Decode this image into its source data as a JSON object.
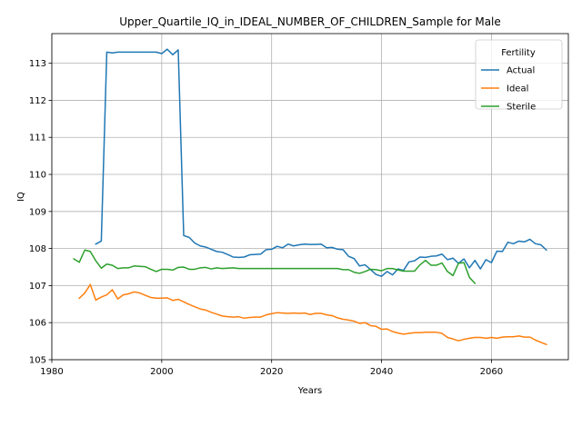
{
  "chart_data": {
    "type": "line",
    "title": "Upper_Quartile_IQ_in_IDEAL_NUMBER_OF_CHILDREN_Sample for Male",
    "xlabel": "Years",
    "ylabel": "IQ",
    "xlim": [
      1980,
      2074
    ],
    "ylim": [
      105,
      113.8
    ],
    "xticks": [
      1980,
      2000,
      2020,
      2040,
      2060
    ],
    "yticks": [
      105,
      106,
      107,
      108,
      109,
      110,
      111,
      112,
      113
    ],
    "grid": true,
    "legend": {
      "title": "Fertility",
      "placement": "top-right"
    },
    "series": [
      {
        "name": "Actual",
        "color": "#1f77b4",
        "x": [
          1988,
          1989,
          1990,
          1991,
          1992,
          1993,
          1994,
          1995,
          1996,
          1997,
          1998,
          1999,
          2000,
          2001,
          2002,
          2003,
          2004,
          2005,
          2006,
          2007,
          2008,
          2009,
          2010,
          2011,
          2012,
          2013,
          2014,
          2015,
          2016,
          2017,
          2018,
          2019,
          2020,
          2021,
          2022,
          2023,
          2024,
          2025,
          2026,
          2027,
          2028,
          2029,
          2030,
          2031,
          2032,
          2033,
          2034,
          2035,
          2036,
          2037,
          2038,
          2039,
          2040,
          2041,
          2042,
          2043,
          2044,
          2045,
          2046,
          2047,
          2048,
          2049,
          2050,
          2051,
          2052,
          2053,
          2054,
          2055,
          2056,
          2057,
          2058,
          2059,
          2060,
          2061,
          2062,
          2063,
          2064,
          2065,
          2066,
          2067,
          2068,
          2069,
          2070
        ],
        "y": [
          108.12,
          108.2,
          113.3,
          113.28,
          113.3,
          113.3,
          113.3,
          113.3,
          113.3,
          113.3,
          113.3,
          113.3,
          113.26,
          113.38,
          113.23,
          113.36,
          108.35,
          108.3,
          108.15,
          108.07,
          108.04,
          107.98,
          107.92,
          107.9,
          107.84,
          107.77,
          107.76,
          107.77,
          107.83,
          107.84,
          107.85,
          107.97,
          107.98,
          108.06,
          108.02,
          108.12,
          108.07,
          108.1,
          108.12,
          108.11,
          108.11,
          108.12,
          108.02,
          108.03,
          107.98,
          107.97,
          107.79,
          107.73,
          107.53,
          107.56,
          107.43,
          107.3,
          107.25,
          107.38,
          107.29,
          107.45,
          107.41,
          107.64,
          107.67,
          107.77,
          107.76,
          107.79,
          107.8,
          107.85,
          107.7,
          107.74,
          107.6,
          107.72,
          107.48,
          107.68,
          107.45,
          107.7,
          107.62,
          107.93,
          107.92,
          108.17,
          108.13,
          108.2,
          108.18,
          108.25,
          108.13,
          108.1,
          107.96
        ]
      },
      {
        "name": "Ideal",
        "color": "#ff7f0e",
        "x": [
          1985,
          1986,
          1987,
          1988,
          1989,
          1990,
          1991,
          1992,
          1993,
          1994,
          1995,
          1996,
          1997,
          1998,
          1999,
          2000,
          2001,
          2002,
          2003,
          2004,
          2005,
          2006,
          2007,
          2008,
          2009,
          2010,
          2011,
          2012,
          2013,
          2014,
          2015,
          2016,
          2017,
          2018,
          2019,
          2020,
          2021,
          2022,
          2023,
          2024,
          2025,
          2026,
          2027,
          2028,
          2029,
          2030,
          2031,
          2032,
          2033,
          2034,
          2035,
          2036,
          2037,
          2038,
          2039,
          2040,
          2041,
          2042,
          2043,
          2044,
          2045,
          2046,
          2047,
          2048,
          2049,
          2050,
          2051,
          2052,
          2053,
          2054,
          2055,
          2056,
          2057,
          2058,
          2059,
          2060,
          2061,
          2062,
          2063,
          2064,
          2065,
          2066,
          2067,
          2068,
          2069,
          2070
        ],
        "y": [
          106.66,
          106.8,
          107.03,
          106.61,
          106.69,
          106.75,
          106.89,
          106.64,
          106.75,
          106.78,
          106.83,
          106.8,
          106.74,
          106.68,
          106.66,
          106.66,
          106.67,
          106.6,
          106.63,
          106.56,
          106.49,
          106.43,
          106.37,
          106.34,
          106.28,
          106.23,
          106.18,
          106.16,
          106.15,
          106.16,
          106.12,
          106.14,
          106.15,
          106.15,
          106.21,
          106.24,
          106.27,
          106.26,
          106.25,
          106.26,
          106.25,
          106.26,
          106.22,
          106.25,
          106.25,
          106.21,
          106.19,
          106.13,
          106.09,
          106.07,
          106.04,
          105.98,
          106.0,
          105.92,
          105.9,
          105.82,
          105.83,
          105.76,
          105.72,
          105.69,
          105.71,
          105.73,
          105.73,
          105.74,
          105.74,
          105.74,
          105.71,
          105.6,
          105.56,
          105.51,
          105.55,
          105.58,
          105.6,
          105.6,
          105.58,
          105.6,
          105.58,
          105.61,
          105.62,
          105.62,
          105.64,
          105.61,
          105.61,
          105.53,
          105.47,
          105.41
        ]
      },
      {
        "name": "Sterile",
        "color": "#2ca02c",
        "x": [
          1984,
          1985,
          1986,
          1987,
          1988,
          1989,
          1990,
          1991,
          1992,
          1993,
          1994,
          1995,
          1996,
          1997,
          1998,
          1999,
          2000,
          2001,
          2002,
          2003,
          2004,
          2005,
          2006,
          2007,
          2008,
          2009,
          2010,
          2011,
          2012,
          2013,
          2014,
          2015,
          2016,
          2017,
          2018,
          2019,
          2020,
          2021,
          2022,
          2023,
          2024,
          2025,
          2026,
          2027,
          2028,
          2029,
          2030,
          2031,
          2032,
          2033,
          2034,
          2035,
          2036,
          2037,
          2038,
          2039,
          2040,
          2041,
          2042,
          2043,
          2044,
          2045,
          2046,
          2047,
          2048,
          2049,
          2050,
          2051,
          2052,
          2053,
          2054,
          2055,
          2056,
          2057
        ],
        "y": [
          107.72,
          107.63,
          107.96,
          107.92,
          107.67,
          107.47,
          107.58,
          107.55,
          107.46,
          107.48,
          107.48,
          107.53,
          107.52,
          107.51,
          107.44,
          107.38,
          107.44,
          107.44,
          107.42,
          107.49,
          107.5,
          107.44,
          107.44,
          107.48,
          107.49,
          107.45,
          107.48,
          107.46,
          107.47,
          107.48,
          107.46,
          107.46,
          107.46,
          107.46,
          107.46,
          107.46,
          107.46,
          107.46,
          107.46,
          107.46,
          107.46,
          107.46,
          107.46,
          107.46,
          107.46,
          107.46,
          107.46,
          107.46,
          107.46,
          107.43,
          107.43,
          107.36,
          107.33,
          107.38,
          107.44,
          107.43,
          107.4,
          107.46,
          107.46,
          107.42,
          107.39,
          107.39,
          107.39,
          107.56,
          107.68,
          107.55,
          107.55,
          107.61,
          107.38,
          107.27,
          107.6,
          107.62,
          107.22,
          107.06
        ]
      }
    ]
  }
}
